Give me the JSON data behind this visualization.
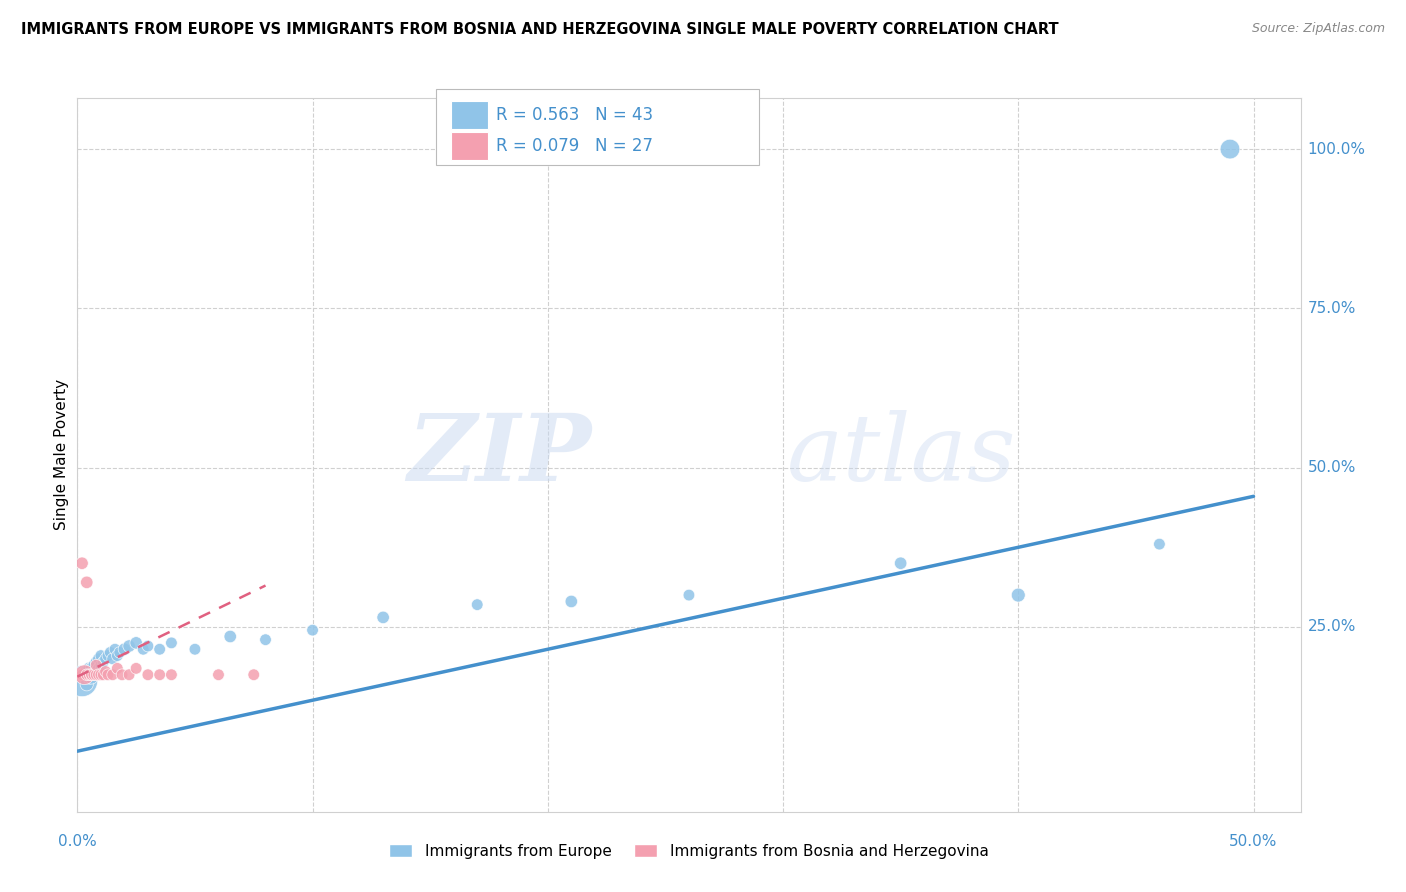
{
  "title": "IMMIGRANTS FROM EUROPE VS IMMIGRANTS FROM BOSNIA AND HERZEGOVINA SINGLE MALE POVERTY CORRELATION CHART",
  "source": "Source: ZipAtlas.com",
  "ylabel": "Single Male Poverty",
  "xlim": [
    0.0,
    0.52
  ],
  "ylim": [
    -0.04,
    1.08
  ],
  "blue_R": "R = 0.563",
  "blue_N": "N = 43",
  "pink_R": "R = 0.079",
  "pink_N": "N = 27",
  "blue_label": "Immigrants from Europe",
  "pink_label": "Immigrants from Bosnia and Herzegovina",
  "background_color": "#ffffff",
  "grid_color": "#d0d0d0",
  "blue_color": "#90c4e8",
  "blue_line_color": "#4490cc",
  "pink_color": "#f4a0b0",
  "pink_line_color": "#e06080",
  "blue_scatter_x": [
    0.002,
    0.003,
    0.004,
    0.004,
    0.005,
    0.005,
    0.006,
    0.006,
    0.007,
    0.007,
    0.008,
    0.008,
    0.009,
    0.009,
    0.01,
    0.01,
    0.011,
    0.012,
    0.013,
    0.014,
    0.015,
    0.016,
    0.017,
    0.018,
    0.02,
    0.022,
    0.025,
    0.028,
    0.03,
    0.035,
    0.04,
    0.05,
    0.065,
    0.08,
    0.1,
    0.13,
    0.17,
    0.21,
    0.26,
    0.35,
    0.4,
    0.46,
    0.49
  ],
  "blue_scatter_y": [
    0.165,
    0.175,
    0.16,
    0.18,
    0.17,
    0.185,
    0.17,
    0.185,
    0.175,
    0.19,
    0.18,
    0.195,
    0.185,
    0.2,
    0.19,
    0.205,
    0.195,
    0.2,
    0.205,
    0.21,
    0.2,
    0.215,
    0.205,
    0.21,
    0.215,
    0.22,
    0.225,
    0.215,
    0.22,
    0.215,
    0.225,
    0.215,
    0.235,
    0.23,
    0.245,
    0.265,
    0.285,
    0.29,
    0.3,
    0.35,
    0.3,
    0.38,
    1.0
  ],
  "blue_scatter_size": [
    500,
    120,
    90,
    100,
    80,
    80,
    80,
    80,
    70,
    70,
    70,
    70,
    70,
    70,
    70,
    70,
    70,
    70,
    70,
    70,
    70,
    70,
    70,
    70,
    80,
    80,
    80,
    70,
    70,
    70,
    70,
    70,
    80,
    70,
    70,
    80,
    70,
    80,
    70,
    80,
    100,
    70,
    200
  ],
  "pink_scatter_x": [
    0.001,
    0.002,
    0.002,
    0.003,
    0.004,
    0.004,
    0.005,
    0.006,
    0.006,
    0.007,
    0.008,
    0.008,
    0.009,
    0.01,
    0.011,
    0.012,
    0.013,
    0.015,
    0.017,
    0.019,
    0.022,
    0.025,
    0.03,
    0.035,
    0.04,
    0.06,
    0.075
  ],
  "pink_scatter_y": [
    0.175,
    0.175,
    0.35,
    0.175,
    0.175,
    0.32,
    0.175,
    0.175,
    0.175,
    0.175,
    0.175,
    0.19,
    0.175,
    0.175,
    0.175,
    0.18,
    0.175,
    0.175,
    0.185,
    0.175,
    0.175,
    0.185,
    0.175,
    0.175,
    0.175,
    0.175,
    0.175
  ],
  "pink_scatter_size": [
    70,
    70,
    80,
    200,
    70,
    80,
    70,
    70,
    70,
    70,
    70,
    70,
    70,
    70,
    70,
    70,
    70,
    70,
    70,
    70,
    70,
    70,
    70,
    70,
    70,
    70,
    70
  ],
  "watermark_zip": "ZIP",
  "watermark_atlas": "atlas",
  "blue_trendline_x": [
    0.0,
    0.5
  ],
  "blue_trendline_y": [
    0.055,
    0.455
  ],
  "pink_trendline_x": [
    0.0,
    0.08
  ],
  "pink_trendline_y": [
    0.172,
    0.315
  ],
  "ytick_vals": [
    0.25,
    0.5,
    0.75,
    1.0
  ],
  "ytick_labels": [
    "25.0%",
    "50.0%",
    "75.0%",
    "100.0%"
  ],
  "xtick_left": "0.0%",
  "xtick_right": "50.0%"
}
